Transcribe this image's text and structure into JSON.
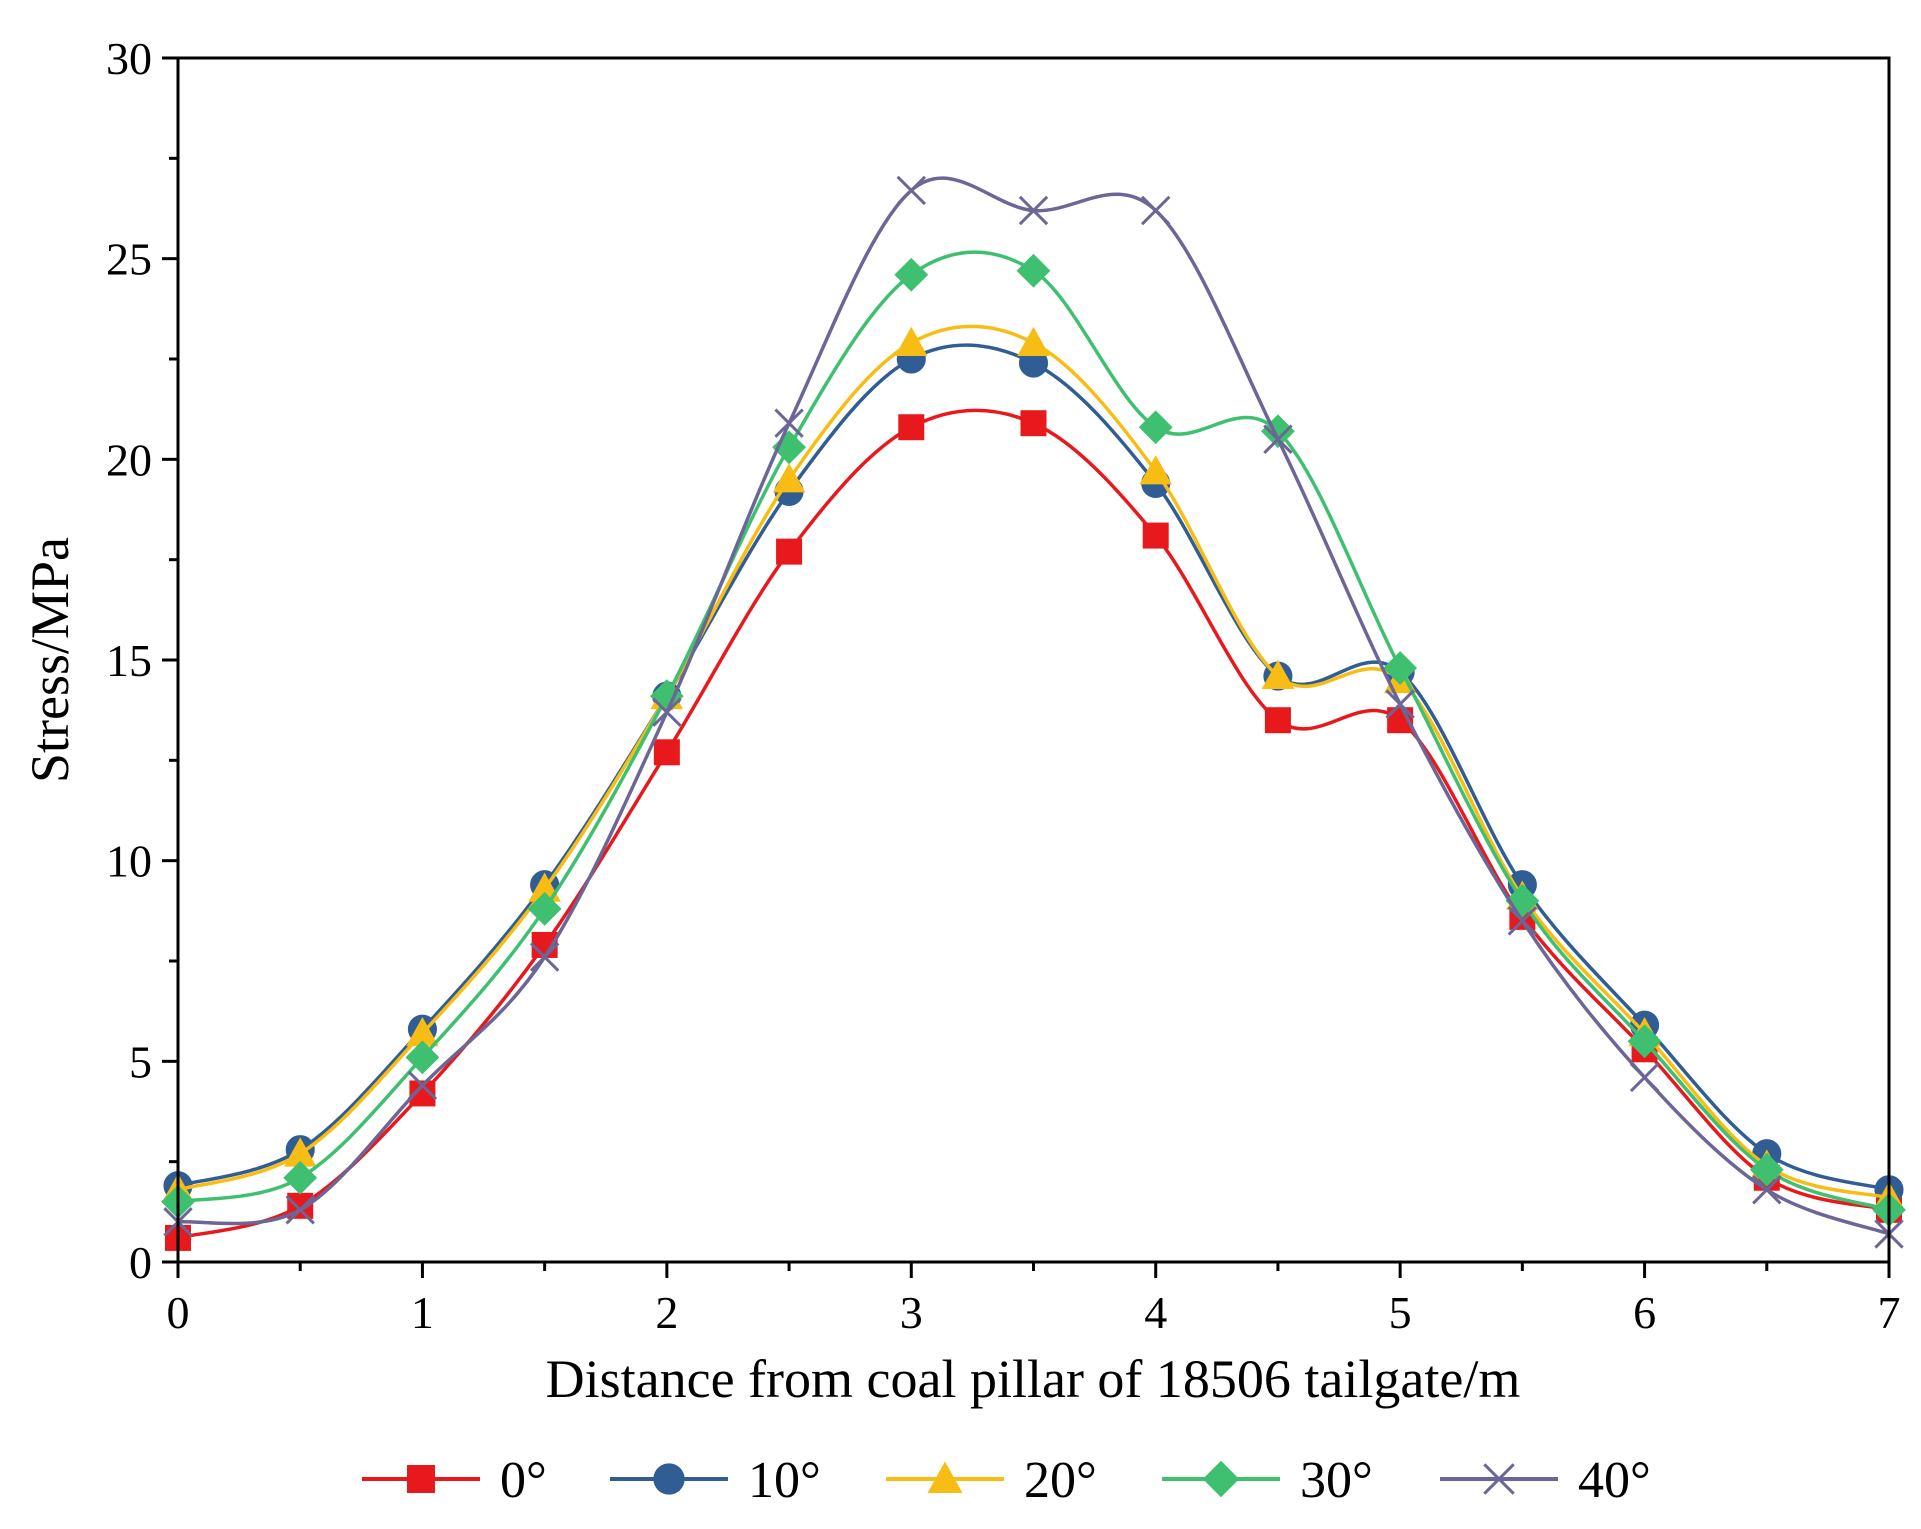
{
  "chart_data": {
    "type": "line",
    "title": "",
    "xlabel": "Distance from coal pillar of 18506 tailgate/m",
    "ylabel": "Stress/MPa",
    "xlim": [
      0,
      7
    ],
    "ylim": [
      0,
      30
    ],
    "xticks": [
      "0",
      "1",
      "2",
      "3",
      "4",
      "5",
      "6",
      "7"
    ],
    "yticks": [
      "0",
      "5",
      "10",
      "15",
      "20",
      "25",
      "30"
    ],
    "grid": false,
    "legend_position": "bottom",
    "x": [
      0,
      0.5,
      1,
      1.5,
      2,
      2.5,
      3,
      3.5,
      4,
      4.5,
      5,
      5.5,
      6,
      6.5,
      7
    ],
    "series": [
      {
        "name": "0°",
        "color": "#e8191d",
        "marker": "square",
        "values": [
          0.6,
          1.4,
          4.2,
          7.9,
          12.7,
          17.7,
          20.8,
          20.9,
          18.1,
          13.5,
          13.5,
          8.6,
          5.3,
          2.1,
          1.3
        ]
      },
      {
        "name": "10°",
        "color": "#2f5d94",
        "marker": "circle",
        "values": [
          1.9,
          2.8,
          5.8,
          9.4,
          14.1,
          19.2,
          22.5,
          22.4,
          19.4,
          14.6,
          14.7,
          9.4,
          5.9,
          2.7,
          1.8
        ]
      },
      {
        "name": "20°",
        "color": "#f7bd14",
        "marker": "triangle",
        "values": [
          1.8,
          2.7,
          5.7,
          9.3,
          14.1,
          19.5,
          22.9,
          22.9,
          19.7,
          14.6,
          14.5,
          9.1,
          5.7,
          2.4,
          1.6
        ]
      },
      {
        "name": "30°",
        "color": "#3ec070",
        "marker": "diamond",
        "values": [
          1.5,
          2.1,
          5.1,
          8.8,
          14.1,
          20.3,
          24.6,
          24.7,
          20.8,
          20.7,
          14.8,
          9.0,
          5.5,
          2.3,
          1.3
        ]
      },
      {
        "name": "40°",
        "color": "#6b6696",
        "marker": "x",
        "values": [
          1.0,
          1.3,
          4.4,
          7.6,
          13.7,
          20.9,
          26.7,
          26.2,
          26.2,
          20.5,
          13.9,
          8.5,
          4.6,
          1.8,
          0.7
        ]
      }
    ]
  }
}
